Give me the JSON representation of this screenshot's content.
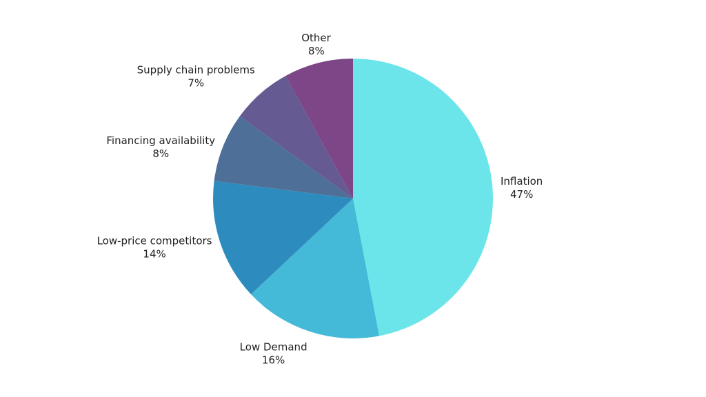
{
  "chart_data": {
    "type": "pie",
    "title": "",
    "start_angle_deg": 0,
    "direction": "clockwise",
    "slices": [
      {
        "label": "Inflation",
        "value": 47,
        "value_label": "47%",
        "color": "#6BE5E9"
      },
      {
        "label": "Low Demand",
        "value": 16,
        "value_label": "16%",
        "color": "#45B9D8"
      },
      {
        "label": "Low-price competitors",
        "value": 14,
        "value_label": "14%",
        "color": "#2E8BBD"
      },
      {
        "label": "Financing availability",
        "value": 8,
        "value_label": "8%",
        "color": "#4E6F98"
      },
      {
        "label": "Supply chain problems",
        "value": 7,
        "value_label": "7%",
        "color": "#655A91"
      },
      {
        "label": "Other",
        "value": 8,
        "value_label": "8%",
        "color": "#7D4687"
      }
    ]
  }
}
